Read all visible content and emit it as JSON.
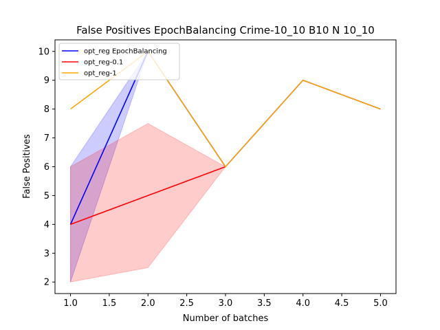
{
  "chart_data": {
    "type": "line",
    "title": "False Positives EpochBalancing Crime-10_10 B10 N 10_10",
    "xlabel": "Number of batches",
    "ylabel": "False Positives",
    "xlim": [
      0.8,
      5.2
    ],
    "ylim": [
      1.6,
      10.4
    ],
    "xticks": [
      "1.0",
      "1.5",
      "2.0",
      "2.5",
      "3.0",
      "3.5",
      "4.0",
      "4.5",
      "5.0"
    ],
    "yticks": [
      "2",
      "3",
      "4",
      "5",
      "6",
      "7",
      "8",
      "9",
      "10"
    ],
    "legend_position": "top-left",
    "grid": false,
    "series": [
      {
        "name": "opt_reg EpochBalancing",
        "color": "#0000ff",
        "x": [
          1,
          2,
          3,
          4,
          5
        ],
        "y": [
          4,
          10,
          6,
          9,
          8
        ],
        "band_low": [
          2,
          10,
          6,
          9,
          8
        ],
        "band_high": [
          6,
          10,
          6,
          9,
          8
        ]
      },
      {
        "name": "opt_reg-0.1",
        "color": "#ff0000",
        "x": [
          1,
          2,
          3
        ],
        "y": [
          4,
          5,
          6
        ],
        "band_low": [
          2,
          2.5,
          6
        ],
        "band_high": [
          6,
          7.5,
          6
        ]
      },
      {
        "name": "opt_reg-1",
        "color": "#ffa500",
        "x": [
          1,
          2,
          3,
          4,
          5
        ],
        "y": [
          8,
          10,
          6,
          9,
          8
        ]
      }
    ]
  }
}
